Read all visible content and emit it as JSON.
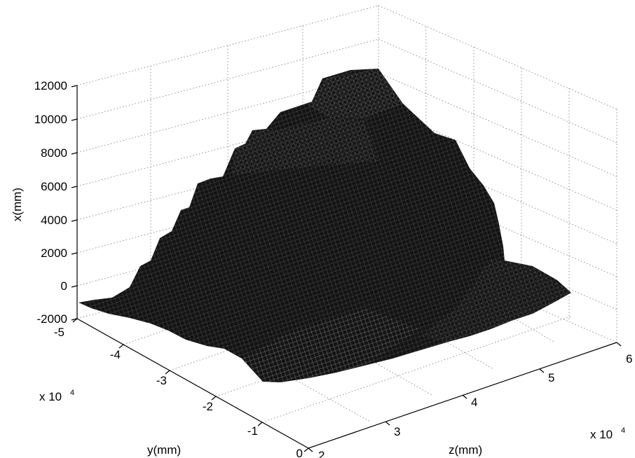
{
  "chart_data": {
    "type": "surface",
    "zlabel": "x(mm)",
    "xlabel": "z(mm)",
    "ylabel": "y(mm)",
    "z_ticks": [
      "12000",
      "10000",
      "8000",
      "6000",
      "4000",
      "2000",
      "0",
      "-2000"
    ],
    "x_ticks": [
      "2",
      "3",
      "4",
      "5",
      "6"
    ],
    "y_ticks": [
      "0",
      "-1",
      "-2",
      "-3",
      "-4",
      "-5"
    ],
    "x_multiplier": "x 10",
    "x_multiplier_exp": "4",
    "y_multiplier": "x 10",
    "y_multiplier_exp": "4",
    "z_range": [
      -2000,
      12000
    ],
    "x_range": [
      2,
      6
    ],
    "y_range": [
      -5,
      0
    ],
    "grid": true,
    "colors": {
      "surface": "#1a1a1a",
      "mesh": "#ffffff"
    }
  }
}
